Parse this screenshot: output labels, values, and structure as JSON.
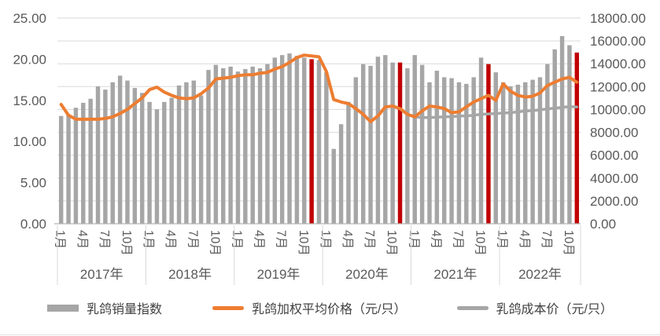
{
  "chart_data": {
    "type": "combo-bar-line",
    "title": "",
    "grid": true,
    "legend_position": "bottom",
    "left_axis": {
      "min": 0,
      "max": 25,
      "step": 5,
      "tick_labels": [
        "0.00",
        "5.00",
        "10.00",
        "15.00",
        "20.00",
        "25.00"
      ]
    },
    "right_axis": {
      "min": 0,
      "max": 18000,
      "step": 2000,
      "tick_labels": [
        "0.00",
        "2000.00",
        "4000.00",
        "6000.00",
        "8000.00",
        "10000.00",
        "12000.00",
        "14000.00",
        "16000.00",
        "18000.00"
      ]
    },
    "years": [
      {
        "label": "2017年",
        "months": 12
      },
      {
        "label": "2018年",
        "months": 12
      },
      {
        "label": "2019年",
        "months": 12
      },
      {
        "label": "2020年",
        "months": 12
      },
      {
        "label": "2021年",
        "months": 12
      },
      {
        "label": "2022年",
        "months": 11
      }
    ],
    "month_tick_labels": [
      "1月",
      "4月",
      "7月",
      "10月"
    ],
    "categories": [
      "2017-01",
      "2017-02",
      "2017-03",
      "2017-04",
      "2017-05",
      "2017-06",
      "2017-07",
      "2017-08",
      "2017-09",
      "2017-10",
      "2017-11",
      "2017-12",
      "2018-01",
      "2018-02",
      "2018-03",
      "2018-04",
      "2018-05",
      "2018-06",
      "2018-07",
      "2018-08",
      "2018-09",
      "2018-10",
      "2018-11",
      "2018-12",
      "2019-01",
      "2019-02",
      "2019-03",
      "2019-04",
      "2019-05",
      "2019-06",
      "2019-07",
      "2019-08",
      "2019-09",
      "2019-10",
      "2019-11",
      "2019-12",
      "2020-01",
      "2020-02",
      "2020-03",
      "2020-04",
      "2020-05",
      "2020-06",
      "2020-07",
      "2020-08",
      "2020-09",
      "2020-10",
      "2020-11",
      "2020-12",
      "2021-01",
      "2021-02",
      "2021-03",
      "2021-04",
      "2021-05",
      "2021-06",
      "2021-07",
      "2021-08",
      "2021-09",
      "2021-10",
      "2021-11",
      "2021-12",
      "2022-01",
      "2022-02",
      "2022-03",
      "2022-04",
      "2022-05",
      "2022-06",
      "2022-07",
      "2022-08",
      "2022-09",
      "2022-10",
      "2022-11"
    ],
    "series": [
      {
        "name": "乳鸽销量指数",
        "type": "bar",
        "axis": "right",
        "color": "#a6a6a6",
        "highlight_color": "#c00000",
        "highlight_indices": [
          34,
          46,
          58,
          70
        ],
        "values": [
          9430,
          9500,
          10150,
          10580,
          10940,
          12020,
          11740,
          12380,
          12960,
          12530,
          11880,
          11450,
          10660,
          10010,
          10660,
          11020,
          12100,
          12380,
          12530,
          11230,
          13460,
          13900,
          13610,
          13750,
          13320,
          13540,
          13750,
          13610,
          13970,
          14540,
          14760,
          14900,
          14690,
          14540,
          14400,
          14330,
          13250,
          6550,
          8710,
          10660,
          12820,
          13970,
          13820,
          14620,
          14760,
          14110,
          14110,
          13610,
          14760,
          13900,
          12380,
          13390,
          12820,
          12740,
          12380,
          12240,
          12820,
          14540,
          13970,
          13250,
          12380,
          12020,
          12170,
          12380,
          12600,
          12820,
          13970,
          15260,
          16420,
          15620,
          14980
        ]
      },
      {
        "name": "乳鸽加权平均价格（元/只）",
        "type": "line",
        "axis": "left",
        "color": "#ed7d31",
        "start_index": 0,
        "values": [
          14.5,
          13.2,
          12.7,
          12.7,
          12.7,
          12.7,
          12.8,
          13.0,
          13.4,
          13.9,
          14.6,
          15.3,
          16.3,
          16.6,
          16.0,
          15.6,
          15.3,
          15.2,
          15.3,
          15.8,
          16.5,
          17.6,
          17.7,
          17.8,
          18.0,
          18.1,
          18.1,
          18.3,
          18.4,
          18.8,
          19.1,
          19.6,
          20.2,
          20.5,
          20.4,
          20.3,
          18.5,
          15.1,
          14.8,
          14.6,
          14.0,
          13.3,
          12.4,
          13.1,
          14.2,
          14.3,
          14.0,
          13.3,
          13.0,
          13.7,
          14.3,
          14.2,
          14.0,
          13.5,
          13.6,
          14.2,
          14.8,
          15.2,
          15.6,
          15.0,
          17.0,
          16.1,
          15.6,
          15.4,
          15.5,
          15.9,
          16.8,
          17.2,
          17.6,
          17.8,
          17.2
        ]
      },
      {
        "name": "乳鸽成本价（元/只）",
        "type": "line",
        "axis": "left",
        "color": "#a6a6a6",
        "start_index": 48,
        "values": [
          13.0,
          12.9,
          12.9,
          12.95,
          13.0,
          13.0,
          13.1,
          13.1,
          13.2,
          13.3,
          13.35,
          13.4,
          13.45,
          13.5,
          13.6,
          13.7,
          13.75,
          13.85,
          13.95,
          14.05,
          14.15,
          14.25,
          14.2
        ]
      }
    ],
    "colors": {
      "grid": "#d9d9d9",
      "axis_line": "#b3b3b3",
      "axis_text": "#595959"
    }
  },
  "legend": {
    "sales": "乳鸽销量指数",
    "price": "乳鸽加权平均价格（元/只）",
    "cost": "乳鸽成本价（元/只）"
  }
}
